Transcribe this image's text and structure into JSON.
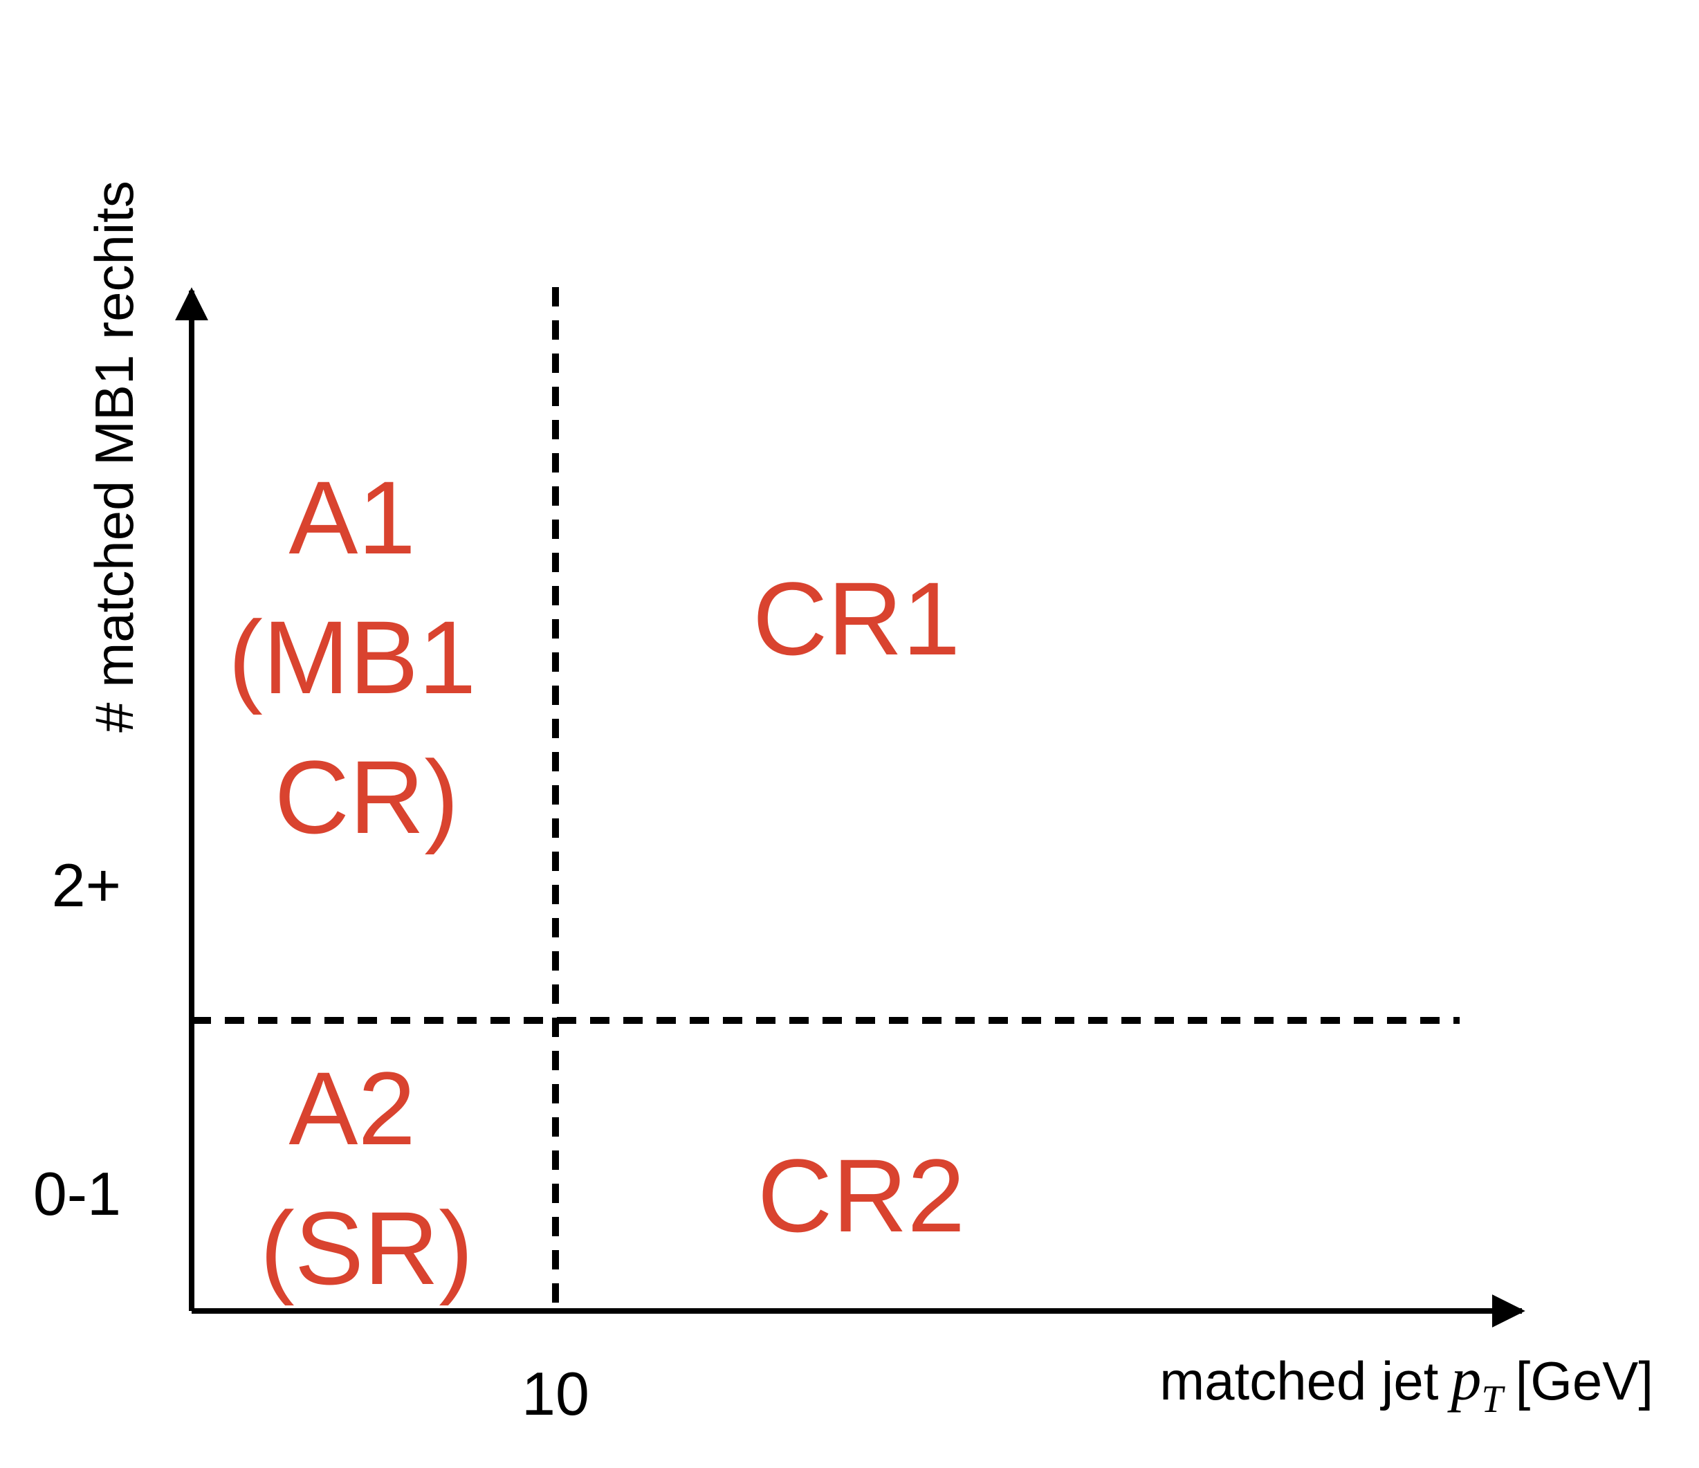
{
  "axes": {
    "x_title": "matched jet",
    "x_title_symbol": "p",
    "x_title_subscript": "T",
    "x_title_unit": "[GeV]",
    "y_title": "# matched MB1 rechits",
    "x_ticks": [
      "10"
    ],
    "y_ticks": [
      "2+",
      "0-1"
    ]
  },
  "regions": {
    "a1": [
      "A1",
      "(MB1",
      "CR)"
    ],
    "a2": [
      "A2",
      "(SR)"
    ],
    "cr1": "CR1",
    "cr2": "CR2"
  },
  "colors": {
    "region_text": "#d9432f",
    "axis": "#000000"
  }
}
